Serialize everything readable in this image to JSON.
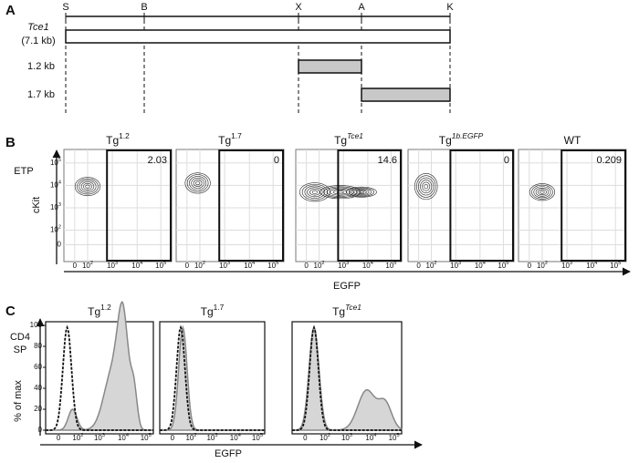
{
  "panel_a": {
    "label": "A",
    "sites": [
      "S",
      "B",
      "X",
      "A",
      "K"
    ],
    "constructs": [
      {
        "name": "Tce1",
        "size": "(7.1 kb)"
      },
      {
        "name": "1.2 kb"
      },
      {
        "name": "1.7 kb"
      }
    ]
  },
  "panel_b": {
    "label": "B",
    "row_label": "ETP",
    "y_label": "cKit",
    "x_label": "EGFP",
    "y_ticks": [
      {
        "base": "10",
        "sup": "5"
      },
      {
        "base": "10",
        "sup": "4"
      },
      {
        "base": "10",
        "sup": "3"
      },
      {
        "base": "10",
        "sup": "2"
      },
      "0"
    ],
    "x_ticks": [
      "0",
      {
        "base": "10",
        "sup": "2"
      },
      {
        "base": "10",
        "sup": "3"
      },
      {
        "base": "10",
        "sup": "4"
      },
      {
        "base": "10",
        "sup": "5"
      }
    ],
    "plots": [
      {
        "title": {
          "base": "Tg",
          "sup": "1.2"
        },
        "gate": 2.03
      },
      {
        "title": {
          "base": "Tg",
          "sup": "1.7"
        },
        "gate": 0
      },
      {
        "title": {
          "base": "Tg",
          "sup": "Tce1"
        },
        "gate": 14.6
      },
      {
        "title": {
          "base": "Tg",
          "sup": "1b.EGFP"
        },
        "gate": 0
      },
      {
        "title": "WT",
        "gate": 0.209
      }
    ]
  },
  "panel_c": {
    "label": "C",
    "row_label": [
      "CD4",
      "SP"
    ],
    "y_label": "% of max",
    "x_label": "EGFP",
    "y_ticks": [
      100,
      80,
      60,
      40,
      20,
      0
    ],
    "x_ticks": [
      "0",
      {
        "base": "10",
        "sup": "2"
      },
      {
        "base": "10",
        "sup": "3"
      },
      {
        "base": "10",
        "sup": "4"
      },
      {
        "base": "10",
        "sup": "5"
      }
    ],
    "plots": [
      {
        "title": {
          "base": "Tg",
          "sup": "1.2"
        }
      },
      {
        "title": {
          "base": "Tg",
          "sup": "1.7"
        }
      },
      {
        "title": {
          "base": "Tg",
          "sup": "Tce1"
        }
      }
    ]
  }
}
